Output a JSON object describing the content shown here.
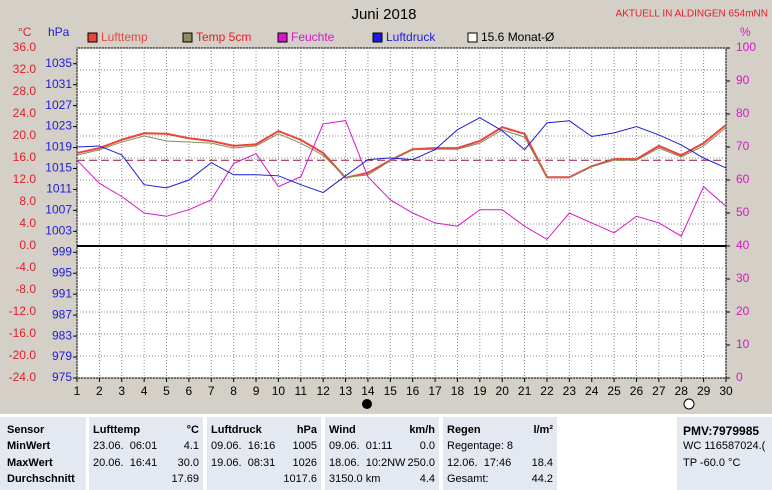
{
  "chart_data": {
    "type": "line",
    "title": "Juni 2018",
    "station": "AKTUELL IN ALDINGEN 654mNN",
    "y_unit": "°C",
    "y2_unit": "hPa",
    "y3_unit": "%",
    "x": [
      1,
      2,
      3,
      4,
      5,
      6,
      7,
      8,
      9,
      10,
      11,
      12,
      13,
      14,
      15,
      16,
      17,
      18,
      19,
      20,
      21,
      22,
      23,
      24,
      25,
      26,
      27,
      28,
      29,
      30
    ],
    "xlim": [
      1,
      30
    ],
    "xticks": [
      1,
      2,
      3,
      4,
      5,
      6,
      7,
      8,
      9,
      10,
      11,
      12,
      13,
      14,
      15,
      16,
      17,
      18,
      19,
      20,
      21,
      22,
      23,
      24,
      25,
      26,
      27,
      28,
      29,
      30
    ],
    "ylim": [
      -24,
      36
    ],
    "yticks": [
      {
        "value": 36,
        "label": "36.0"
      },
      {
        "value": 32,
        "label": "32.0"
      },
      {
        "value": 28,
        "label": "28.0"
      },
      {
        "value": 24,
        "label": "24.0"
      },
      {
        "value": 20,
        "label": "20.0"
      },
      {
        "value": 16,
        "label": "16.0"
      },
      {
        "value": 12,
        "label": "12.0"
      },
      {
        "value": 8,
        "label": "8.0"
      },
      {
        "value": 4,
        "label": "4.0"
      },
      {
        "value": 0,
        "label": "0.0"
      },
      {
        "value": -4,
        "label": "-4.0"
      },
      {
        "value": -8,
        "label": "-8.0"
      },
      {
        "value": -12,
        "label": "-12.0"
      },
      {
        "value": -16,
        "label": "-16.0"
      },
      {
        "value": -20,
        "label": "-20.0"
      },
      {
        "value": -24,
        "label": "-24.0"
      }
    ],
    "y2lim": [
      975,
      1038
    ],
    "y2ticks": [
      1035,
      1031,
      1027,
      1023,
      1019,
      1015,
      1011,
      1007,
      1003,
      999,
      995,
      991,
      987,
      983,
      979,
      975
    ],
    "y3lim": [
      0,
      100
    ],
    "y3ticks": [
      100,
      90,
      80,
      70,
      60,
      50,
      40,
      30,
      20,
      10,
      0
    ],
    "grid": true,
    "series": [
      {
        "name": "Lufttemp",
        "color": "#e8453c",
        "axis": "y",
        "values": [
          16.9,
          17.8,
          19.3,
          20.5,
          20.4,
          19.6,
          19.1,
          18.2,
          18.5,
          20.9,
          19.3,
          16.9,
          12.4,
          13.3,
          15.6,
          17.6,
          17.8,
          17.8,
          19.1,
          21.6,
          20.4,
          12.5,
          12.5,
          14.5,
          15.8,
          15.8,
          18.2,
          16.5,
          18.7,
          22.0
        ]
      },
      {
        "name": "Temp 5cm",
        "color": "#8b8b5c",
        "axis": "y",
        "values": [
          16.5,
          17.5,
          18.9,
          20.0,
          19.1,
          18.9,
          18.7,
          17.8,
          18.2,
          20.4,
          18.7,
          16.5,
          12.5,
          12.9,
          15.5,
          17.5,
          17.6,
          17.6,
          18.7,
          21.1,
          19.8,
          12.4,
          12.4,
          14.4,
          15.6,
          15.6,
          17.8,
          16.2,
          18.2,
          21.5
        ]
      },
      {
        "name": "Feuchte",
        "color": "#d817c8",
        "axis": "y3",
        "values": [
          66,
          59,
          55,
          50,
          49,
          51,
          54,
          65,
          68,
          58,
          61,
          77,
          78,
          61,
          54,
          50,
          47,
          46,
          51,
          51,
          46,
          42,
          50,
          47,
          44,
          49,
          47,
          43,
          58,
          52
        ]
      },
      {
        "name": "Luftdruck",
        "color": "#1c1cd8",
        "axis": "y2",
        "values": [
          1019.1,
          1019.3,
          1017.6,
          1011.9,
          1011.3,
          1012.8,
          1016.1,
          1013.8,
          1013.8,
          1013.6,
          1011.9,
          1010.4,
          1013.6,
          1016.7,
          1017.0,
          1016.7,
          1018.6,
          1022.4,
          1024.7,
          1022.2,
          1018.6,
          1023.7,
          1024.1,
          1021.1,
          1021.8,
          1023.0,
          1021.4,
          1019.5,
          1017.0,
          1015.1
        ]
      }
    ],
    "mean_line": {
      "name": "15.6 Monat-Ø",
      "value": 15.6,
      "color": "#8b1a3a"
    }
  },
  "table": {
    "row_labels": [
      "Sensor",
      "MinWert",
      "MaxWert",
      "Durchschnitt"
    ],
    "columns": [
      {
        "header": "Lufttemp",
        "unit": "°C",
        "rows": [
          [
            "23.06.  06:01",
            "4.1"
          ],
          [
            "20.06.  16:41",
            "30.0"
          ],
          [
            "",
            "17.69"
          ]
        ]
      },
      {
        "header": "Luftdruck",
        "unit": "hPa",
        "rows": [
          [
            "09.06.  16:16",
            "1005"
          ],
          [
            "19.06.  08:31",
            "1026"
          ],
          [
            "",
            "1017.6"
          ]
        ]
      },
      {
        "header": "Wind",
        "unit": "km/h",
        "rows": [
          [
            "09.06.  01:11",
            "0.0"
          ],
          [
            "18.06.  10:2NW",
            "250.0"
          ],
          [
            "3150.0 km",
            "4.4"
          ]
        ]
      },
      {
        "header": "Regen",
        "unit": "l/m²",
        "rows": [
          [
            "Regentage: 8",
            ""
          ],
          [
            "12.06.  17:46",
            "18.4"
          ],
          [
            "Gesamt:",
            "44.2"
          ]
        ]
      }
    ],
    "side": [
      "PMV:7979985",
      "WC 116587024.(",
      "TP -60.0 °C"
    ]
  }
}
